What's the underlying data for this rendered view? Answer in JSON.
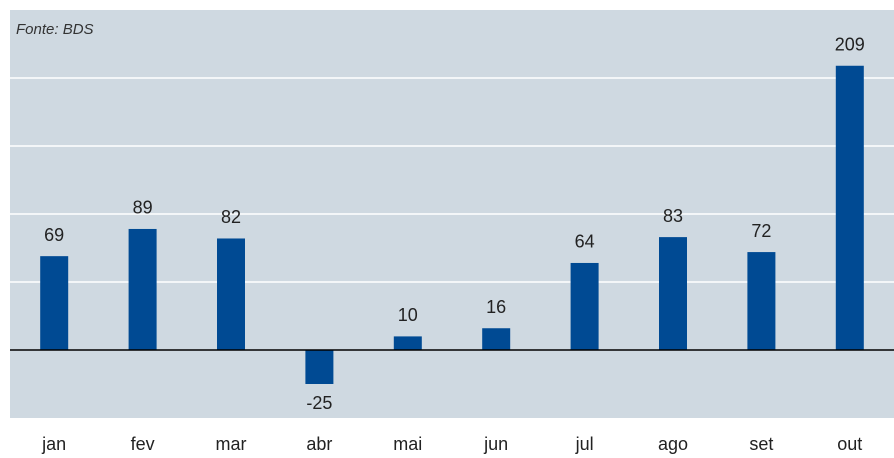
{
  "chart_data": {
    "type": "bar",
    "source": "Fonte: BDS",
    "categories": [
      "jan",
      "fev",
      "mar",
      "abr",
      "mai",
      "jun",
      "jul",
      "ago",
      "set",
      "out"
    ],
    "values": [
      69,
      89,
      82,
      -25,
      10,
      16,
      64,
      83,
      72,
      209
    ],
    "color": "#004a93",
    "background": "#cfd9e1",
    "ylim": [
      -50,
      250
    ],
    "yticks": [
      0,
      50,
      100,
      150,
      200
    ],
    "grid": true
  }
}
